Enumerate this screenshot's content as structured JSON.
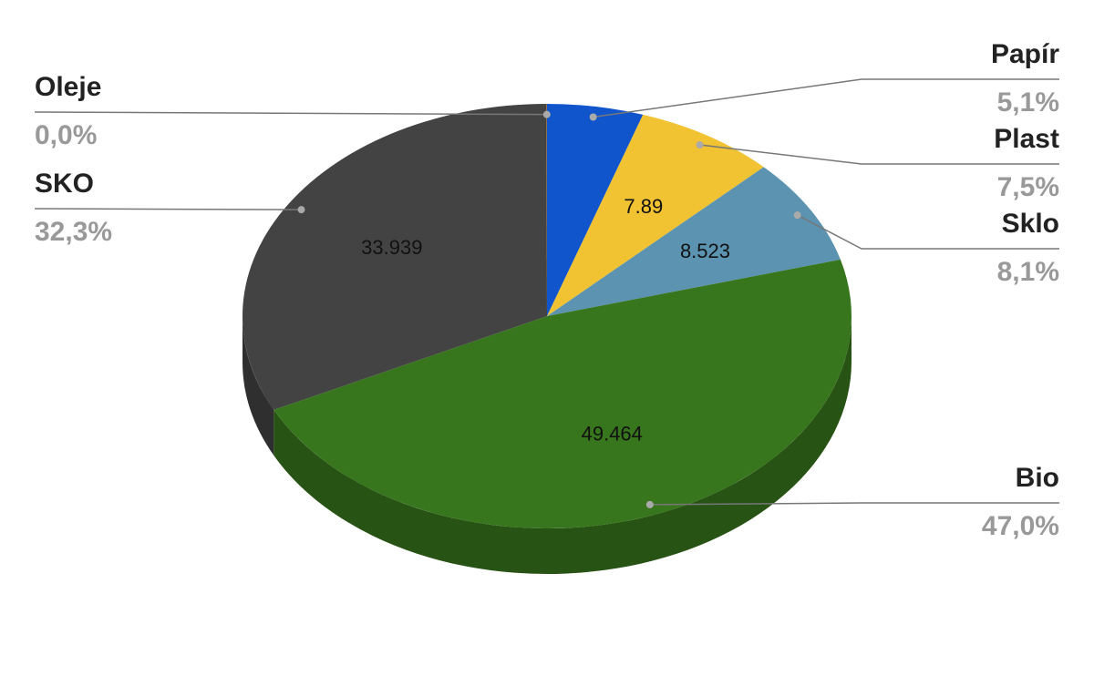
{
  "chart_data": {
    "type": "pie3d",
    "categories": [
      "Papír",
      "Plast",
      "Sklo",
      "Bio",
      "SKO",
      "Oleje"
    ],
    "values": [
      5.37,
      7.89,
      8.523,
      49.464,
      33.939,
      0.02
    ],
    "percent_labels": [
      "5,1%",
      "7,5%",
      "8,1%",
      "47,0%",
      "32,3%",
      "0,0%"
    ],
    "colors": [
      "#1155cc",
      "#f1c232",
      "#5b93b1",
      "#38761d",
      "#434343",
      "#e69138"
    ]
  }
}
